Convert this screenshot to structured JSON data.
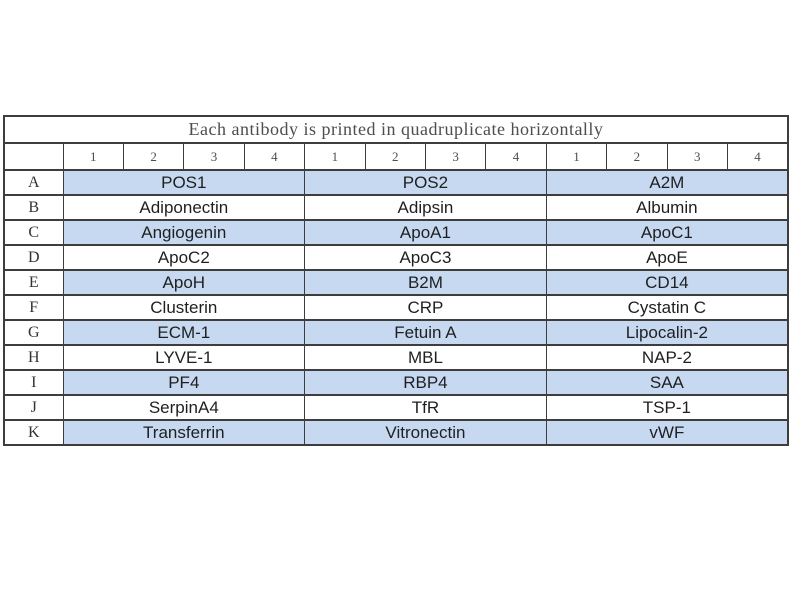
{
  "page": {
    "background": "#ffffff"
  },
  "table": {
    "title": "Each antibody is printed in quadruplicate horizontally",
    "corner_label": "",
    "column_numbers": [
      "1",
      "2",
      "3",
      "4",
      "1",
      "2",
      "3",
      "4",
      "1",
      "2",
      "3",
      "4"
    ],
    "rows": [
      {
        "label": "A",
        "cells": [
          "POS1",
          "POS2",
          "A2M"
        ],
        "highlighted": true
      },
      {
        "label": "B",
        "cells": [
          "Adiponectin",
          "Adipsin",
          "Albumin"
        ],
        "highlighted": false
      },
      {
        "label": "C",
        "cells": [
          "Angiogenin",
          "ApoA1",
          "ApoC1"
        ],
        "highlighted": true
      },
      {
        "label": "D",
        "cells": [
          "ApoC2",
          "ApoC3",
          "ApoE"
        ],
        "highlighted": false
      },
      {
        "label": "E",
        "cells": [
          "ApoH",
          "B2M",
          "CD14"
        ],
        "highlighted": true
      },
      {
        "label": "F",
        "cells": [
          "Clusterin",
          "CRP",
          "Cystatin C"
        ],
        "highlighted": false
      },
      {
        "label": "G",
        "cells": [
          "ECM-1",
          "Fetuin A",
          "Lipocalin-2"
        ],
        "highlighted": true
      },
      {
        "label": "H",
        "cells": [
          "LYVE-1",
          "MBL",
          "NAP-2"
        ],
        "highlighted": false
      },
      {
        "label": "I",
        "cells": [
          "PF4",
          "RBP4",
          "SAA"
        ],
        "highlighted": true
      },
      {
        "label": "J",
        "cells": [
          "SerpinA4",
          "TfR",
          "TSP-1"
        ],
        "highlighted": false
      },
      {
        "label": "K",
        "cells": [
          "Transferrin",
          "Vitronectin",
          "vWF"
        ],
        "highlighted": true
      }
    ],
    "colors": {
      "highlight_row": "#c6d9f1",
      "border": "#3d3d3d",
      "cell_text": "#1f1f1f",
      "header_text": "#4d4d4d"
    }
  }
}
